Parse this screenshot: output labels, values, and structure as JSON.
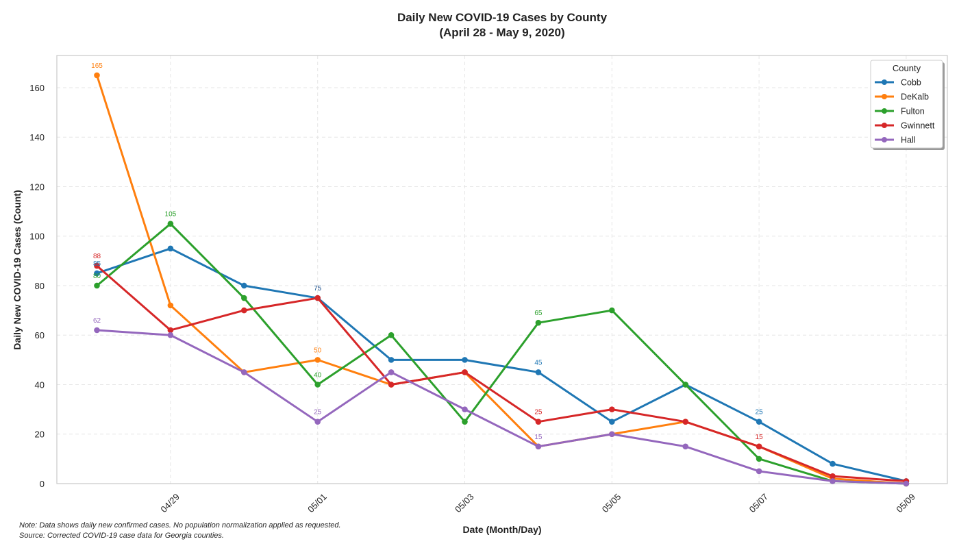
{
  "chart_data": {
    "type": "line",
    "title": "Daily New COVID-19 Cases by County",
    "subtitle": "(April 28 - May 9, 2020)",
    "xlabel": "Date (Month/Day)",
    "ylabel": "Daily New COVID-19 Cases (Count)",
    "x": [
      "04/28",
      "04/29",
      "04/30",
      "05/01",
      "05/02",
      "05/03",
      "05/04",
      "05/05",
      "05/06",
      "05/07",
      "05/08",
      "05/09"
    ],
    "xticks": [
      "04/29",
      "05/01",
      "05/03",
      "05/05",
      "05/07",
      "05/09"
    ],
    "ylim": [
      0,
      173
    ],
    "yticks": [
      0,
      20,
      40,
      60,
      80,
      100,
      120,
      140,
      160
    ],
    "grid": true,
    "legend": {
      "title": "County",
      "position": "top-right"
    },
    "series": [
      {
        "name": "Cobb",
        "color": "#1f77b4",
        "values": [
          85,
          95,
          80,
          75,
          50,
          50,
          45,
          25,
          40,
          25,
          8,
          1
        ]
      },
      {
        "name": "DeKalb",
        "color": "#ff7f0e",
        "values": [
          165,
          72,
          45,
          50,
          40,
          45,
          15,
          20,
          25,
          15,
          2,
          0
        ]
      },
      {
        "name": "Fulton",
        "color": "#2ca02c",
        "values": [
          80,
          105,
          75,
          40,
          60,
          25,
          65,
          70,
          40,
          10,
          1,
          0
        ]
      },
      {
        "name": "Gwinnett",
        "color": "#d62728",
        "values": [
          88,
          62,
          70,
          75,
          40,
          45,
          25,
          30,
          25,
          15,
          3,
          1
        ]
      },
      {
        "name": "Hall",
        "color": "#9467bd",
        "values": [
          62,
          60,
          45,
          25,
          45,
          30,
          15,
          20,
          15,
          5,
          1,
          0
        ]
      }
    ],
    "data_labels": [
      {
        "series": 1,
        "index": 0,
        "text": "165"
      },
      {
        "series": 0,
        "index": 0,
        "text": "85"
      },
      {
        "series": 2,
        "index": 0,
        "text": "80"
      },
      {
        "series": 3,
        "index": 0,
        "text": "88"
      },
      {
        "series": 4,
        "index": 0,
        "text": "62"
      },
      {
        "series": 2,
        "index": 1,
        "text": "105"
      },
      {
        "series": 1,
        "index": 3,
        "text": "50"
      },
      {
        "series": 2,
        "index": 3,
        "text": "40"
      },
      {
        "series": 4,
        "index": 3,
        "text": "25"
      },
      {
        "series": 3,
        "index": 3,
        "text": "75"
      },
      {
        "series": 0,
        "index": 3,
        "text": "75"
      },
      {
        "series": 2,
        "index": 6,
        "text": "65"
      },
      {
        "series": 0,
        "index": 6,
        "text": "45"
      },
      {
        "series": 3,
        "index": 6,
        "text": "25"
      },
      {
        "series": 4,
        "index": 6,
        "text": "15"
      },
      {
        "series": 0,
        "index": 9,
        "text": "25"
      },
      {
        "series": 3,
        "index": 9,
        "text": "15"
      }
    ]
  },
  "notes": {
    "line1": "Note: Data shows daily new confirmed cases. No population normalization applied as requested.",
    "line2": "Source: Corrected COVID-19 case data for Georgia counties."
  }
}
